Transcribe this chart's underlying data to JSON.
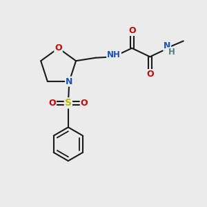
{
  "background_color": "#ebebeb",
  "fig_size": [
    3.0,
    3.0
  ],
  "dpi": 100,
  "atom_colors": {
    "C": "#1a1a1a",
    "N": "#1a4fc4",
    "O": "#cc0000",
    "S": "#b8b800",
    "H": "#4a8080"
  },
  "bond_color": "#1a1a1a",
  "bond_lw": 1.5,
  "xlim": [
    0,
    10
  ],
  "ylim": [
    0,
    10
  ]
}
